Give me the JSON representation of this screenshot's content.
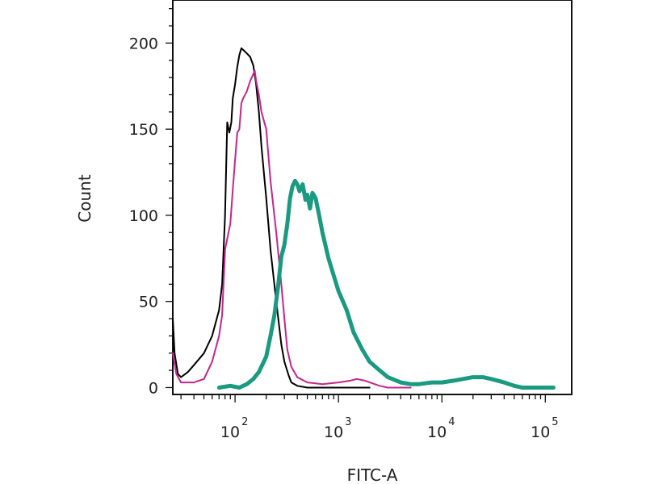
{
  "chart_data": {
    "type": "line",
    "title": "",
    "xlabel": "FITC-A",
    "ylabel": "Count",
    "x_scale": "log",
    "xlim": [
      25,
      180000
    ],
    "ylim": [
      -4,
      225
    ],
    "x_ticks": [
      {
        "value": 100,
        "base": "10",
        "exp": "2"
      },
      {
        "value": 1000,
        "base": "10",
        "exp": "3"
      },
      {
        "value": 10000,
        "base": "10",
        "exp": "4"
      },
      {
        "value": 100000,
        "base": "10",
        "exp": "5"
      }
    ],
    "y_ticks": [
      "0",
      "50",
      "100",
      "150",
      "200"
    ],
    "grid": false,
    "legend": "none",
    "series": [
      {
        "color": "#000000",
        "stroke_width": 2,
        "points": [
          [
            25,
            40
          ],
          [
            26,
            20
          ],
          [
            28,
            8
          ],
          [
            30,
            6
          ],
          [
            35,
            9
          ],
          [
            40,
            13
          ],
          [
            50,
            20
          ],
          [
            60,
            30
          ],
          [
            70,
            45
          ],
          [
            75,
            60
          ],
          [
            80,
            100
          ],
          [
            84,
            154
          ],
          [
            88,
            148
          ],
          [
            92,
            154
          ],
          [
            95,
            168
          ],
          [
            100,
            176
          ],
          [
            105,
            186
          ],
          [
            110,
            193
          ],
          [
            115,
            197
          ],
          [
            120,
            196
          ],
          [
            130,
            194
          ],
          [
            140,
            192
          ],
          [
            150,
            187
          ],
          [
            160,
            176
          ],
          [
            170,
            160
          ],
          [
            180,
            140
          ],
          [
            200,
            110
          ],
          [
            220,
            80
          ],
          [
            250,
            50
          ],
          [
            280,
            25
          ],
          [
            300,
            15
          ],
          [
            330,
            7
          ],
          [
            350,
            3
          ],
          [
            400,
            1
          ],
          [
            500,
            0
          ],
          [
            2000,
            0
          ]
        ]
      },
      {
        "color": "#c2268a",
        "stroke_width": 2,
        "points": [
          [
            25,
            20
          ],
          [
            27,
            8
          ],
          [
            30,
            3
          ],
          [
            40,
            3
          ],
          [
            50,
            5
          ],
          [
            60,
            15
          ],
          [
            70,
            30
          ],
          [
            75,
            42
          ],
          [
            80,
            80
          ],
          [
            85,
            88
          ],
          [
            90,
            95
          ],
          [
            95,
            115
          ],
          [
            100,
            132
          ],
          [
            105,
            148
          ],
          [
            110,
            150
          ],
          [
            115,
            165
          ],
          [
            120,
            168
          ],
          [
            130,
            172
          ],
          [
            140,
            178
          ],
          [
            150,
            182
          ],
          [
            155,
            184
          ],
          [
            160,
            178
          ],
          [
            170,
            170
          ],
          [
            180,
            160
          ],
          [
            200,
            150
          ],
          [
            220,
            120
          ],
          [
            250,
            90
          ],
          [
            280,
            60
          ],
          [
            300,
            40
          ],
          [
            320,
            22
          ],
          [
            350,
            12
          ],
          [
            400,
            6
          ],
          [
            500,
            3
          ],
          [
            700,
            2
          ],
          [
            1000,
            3
          ],
          [
            1300,
            4
          ],
          [
            1500,
            5
          ],
          [
            1800,
            4
          ],
          [
            2500,
            1
          ],
          [
            3000,
            0
          ],
          [
            5000,
            0
          ]
        ]
      },
      {
        "color": "#1a9a80",
        "stroke_width": 5,
        "points": [
          [
            70,
            0
          ],
          [
            90,
            1
          ],
          [
            110,
            0
          ],
          [
            130,
            2
          ],
          [
            150,
            5
          ],
          [
            170,
            9
          ],
          [
            200,
            18
          ],
          [
            220,
            30
          ],
          [
            240,
            42
          ],
          [
            260,
            58
          ],
          [
            280,
            76
          ],
          [
            300,
            83
          ],
          [
            320,
            95
          ],
          [
            340,
            110
          ],
          [
            360,
            117
          ],
          [
            380,
            120
          ],
          [
            400,
            118
          ],
          [
            420,
            114
          ],
          [
            450,
            118
          ],
          [
            480,
            109
          ],
          [
            500,
            112
          ],
          [
            530,
            104
          ],
          [
            560,
            113
          ],
          [
            600,
            110
          ],
          [
            650,
            100
          ],
          [
            700,
            90
          ],
          [
            800,
            75
          ],
          [
            900,
            65
          ],
          [
            1000,
            56
          ],
          [
            1200,
            45
          ],
          [
            1400,
            32
          ],
          [
            1700,
            22
          ],
          [
            2000,
            15
          ],
          [
            2500,
            10
          ],
          [
            3000,
            6
          ],
          [
            4000,
            3
          ],
          [
            5000,
            2
          ],
          [
            6000,
            2
          ],
          [
            8000,
            3
          ],
          [
            10000,
            3
          ],
          [
            13000,
            4
          ],
          [
            16000,
            5
          ],
          [
            20000,
            6
          ],
          [
            25000,
            6
          ],
          [
            30000,
            5
          ],
          [
            40000,
            3
          ],
          [
            50000,
            1
          ],
          [
            60000,
            0
          ],
          [
            120000,
            0
          ]
        ]
      }
    ]
  }
}
